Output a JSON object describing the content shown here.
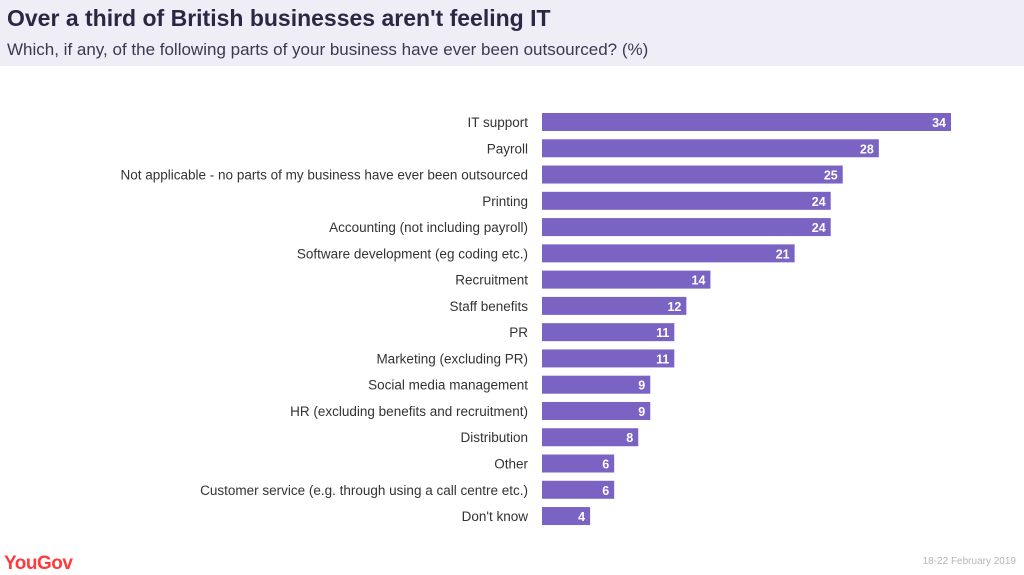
{
  "title": "Over a third of British businesses aren't feeling IT",
  "subtitle": "Which, if any, of the following parts of your business have ever been outsourced? (%)",
  "logo": "YouGov",
  "date": "18-22 February 2019",
  "colors": {
    "bar": "#7b63c3",
    "label": "#333333",
    "value": "#ffffff",
    "brand": "#ff3b3b"
  },
  "chart_data": {
    "type": "bar",
    "orientation": "horizontal",
    "title": "Over a third of British businesses aren't feeling IT",
    "subtitle": "Which, if any, of the following parts of your business have ever been outsourced? (%)",
    "categories": [
      "IT support",
      "Payroll",
      "Not applicable - no parts of my business have ever been outsourced",
      "Printing",
      "Accounting (not including payroll)",
      "Software development (eg coding etc.)",
      "Recruitment",
      "Staff benefits",
      "PR",
      "Marketing (excluding PR)",
      "Social media management",
      "HR (excluding benefits and recruitment)",
      "Distribution",
      "Other",
      "Customer service (e.g. through using a call centre etc.)",
      "Don't know"
    ],
    "values": [
      34,
      28,
      25,
      24,
      24,
      21,
      14,
      12,
      11,
      11,
      9,
      9,
      8,
      6,
      6,
      4
    ],
    "xlim": [
      0,
      34
    ],
    "grid": false,
    "legend": "none"
  }
}
